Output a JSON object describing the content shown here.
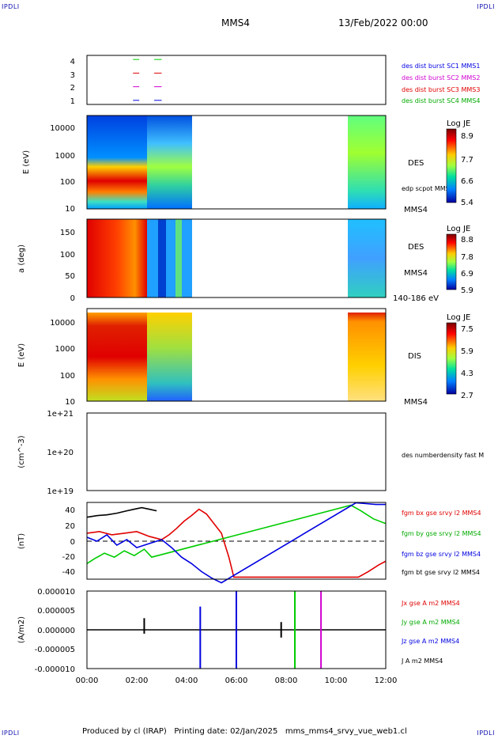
{
  "header": {
    "corner_tl": "IPDLI",
    "corner_tr": "IPDLI",
    "corner_bl": "IPDLI",
    "corner_br": "IPDLI",
    "spacecraft": "MMS4",
    "date": "13/Feb/2022 00:00"
  },
  "footer": {
    "text": "Produced by cl (IRAP)   Printing date: 02/Jan/2025   mms_mms4_srvy_vue_web1.cl"
  },
  "colors": {
    "red": "#e00000",
    "green": "#00cc00",
    "blue": "#0000e0",
    "magenta": "#d000d0",
    "black": "#000000"
  },
  "chart_data": [
    {
      "type": "line",
      "id": "burst",
      "yticks": [
        "1",
        "2",
        "3",
        "4"
      ],
      "ylim": [
        0.7,
        4.3
      ],
      "legend": [
        {
          "text": "des dist burst SC1 MMS1",
          "color": "#0000e0"
        },
        {
          "text": "des dist burst SC2 MMS2",
          "color": "#d000d0"
        },
        {
          "text": "des dist burst SC3 MMS3",
          "color": "#e00000"
        },
        {
          "text": "des dist burst SC4 MMS4",
          "color": "#00cc00"
        }
      ],
      "series": [
        {
          "level": 4,
          "color": "#00cc00",
          "x": [
            [
              1.85,
              2.1
            ],
            [
              2.7,
              3.0
            ]
          ]
        },
        {
          "level": 3,
          "color": "#e00000",
          "x": [
            [
              1.85,
              2.1
            ],
            [
              2.7,
              3.0
            ]
          ]
        },
        {
          "level": 2,
          "color": "#d000d0",
          "x": [
            [
              1.85,
              2.1
            ],
            [
              2.7,
              3.0
            ]
          ]
        },
        {
          "level": 1,
          "color": "#0000e0",
          "x": [
            [
              1.85,
              2.1
            ],
            [
              2.7,
              3.0
            ]
          ]
        }
      ]
    },
    {
      "type": "heatmap",
      "id": "des_energy",
      "ylabel": "E (eV)",
      "yscale": "log",
      "ylim": [
        10,
        30000
      ],
      "yticks": [
        "10",
        "100",
        "1000",
        "10000"
      ],
      "colorbar": {
        "title": "Log JE",
        "ticks": [
          "8.9",
          "7.7",
          "6.6",
          "5.4"
        ]
      },
      "labels": {
        "instrument": "DES",
        "overlay": "edp scpot MMS4",
        "sc": "MMS4"
      },
      "coverage_hours": [
        [
          0,
          4.2
        ],
        [
          10.5,
          12
        ]
      ]
    },
    {
      "type": "heatmap",
      "id": "des_pitch",
      "ylabel": "a (deg)",
      "ylim": [
        0,
        180
      ],
      "yticks": [
        "0",
        "50",
        "100",
        "150"
      ],
      "colorbar": {
        "title": "Log JE",
        "ticks": [
          "8.8",
          "7.8",
          "6.9",
          "5.9"
        ]
      },
      "labels": {
        "instrument": "DES",
        "sc": "MMS4",
        "range": "140-186 eV"
      },
      "coverage_hours": [
        [
          0,
          4.2
        ],
        [
          10.5,
          12
        ]
      ]
    },
    {
      "type": "heatmap",
      "id": "dis_energy",
      "ylabel": "E (eV)",
      "yscale": "log",
      "ylim": [
        10,
        20000
      ],
      "yticks": [
        "10",
        "100",
        "1000",
        "10000"
      ],
      "colorbar": {
        "title": "Log JE",
        "ticks": [
          "7.5",
          "5.9",
          "4.3",
          "2.7"
        ]
      },
      "labels": {
        "instrument": "DIS",
        "sc": "MMS4"
      },
      "coverage_hours": [
        [
          0,
          4.2
        ],
        [
          10.5,
          12
        ]
      ]
    },
    {
      "type": "line",
      "id": "density",
      "ylabel": "(cm^-3)",
      "yscale": "log",
      "yticks": [
        "1e+19",
        "1e+20",
        "1e+21"
      ],
      "legend": [
        {
          "text": "des numberdensity fast M",
          "color": "#000000"
        }
      ]
    },
    {
      "type": "line",
      "id": "bfield",
      "ylabel": "(nT)",
      "ylim": [
        -48,
        48
      ],
      "yticks": [
        "-40",
        "-20",
        "0",
        "20",
        "40"
      ],
      "legend": [
        {
          "text": "fgm bx gse srvy l2 MMS4",
          "color": "#e00000"
        },
        {
          "text": "fgm by gse srvy l2 MMS4",
          "color": "#00cc00"
        },
        {
          "text": "fgm bz gse srvy l2 MMS4",
          "color": "#0000e0"
        },
        {
          "text": "fgm bt gse srvy l2 MMS4",
          "color": "#000000"
        }
      ],
      "series": [
        {
          "name": "fgm bt gse srvy l2 MMS4",
          "color": "#000000",
          "x": [
            0.0,
            0.4,
            0.8,
            1.2,
            1.6,
            1.9,
            2.2,
            2.5,
            2.8
          ],
          "y": [
            30,
            32,
            33,
            35,
            38,
            40,
            42,
            40,
            38
          ]
        },
        {
          "name": "fgm bx gse srvy l2 MMS4",
          "color": "#e00000",
          "x": [
            0.0,
            0.5,
            1.0,
            1.5,
            2.0,
            2.5,
            3.0,
            3.3,
            3.6,
            3.9,
            4.2,
            4.5,
            4.8,
            5.1,
            5.4,
            5.7,
            5.9,
            10.9,
            11.3,
            11.7,
            12.0
          ],
          "y": [
            10,
            12,
            8,
            10,
            12,
            6,
            2,
            8,
            16,
            25,
            32,
            40,
            34,
            22,
            10,
            -20,
            -45,
            -45,
            -38,
            -30,
            -25
          ]
        },
        {
          "name": "fgm by gse srvy l2 MMS4",
          "color": "#00cc00",
          "x": [
            0.0,
            0.3,
            0.7,
            1.1,
            1.5,
            1.9,
            2.3,
            2.6,
            10.6,
            11.0,
            11.5,
            12.0
          ],
          "y": [
            -28,
            -22,
            -15,
            -20,
            -12,
            -18,
            -10,
            -20,
            45,
            38,
            28,
            22
          ]
        },
        {
          "name": "fgm bz gse srvy l2 MMS4",
          "color": "#0000e0",
          "x": [
            0.0,
            0.4,
            0.8,
            1.2,
            1.6,
            2.0,
            2.5,
            3.0,
            3.4,
            3.8,
            4.2,
            4.6,
            5.0,
            5.4,
            10.8,
            11.2,
            11.6,
            12.0
          ],
          "y": [
            5,
            0,
            8,
            -5,
            2,
            -8,
            -3,
            2,
            -8,
            -20,
            -28,
            -38,
            -46,
            -52,
            48,
            47,
            46,
            46
          ]
        }
      ]
    },
    {
      "type": "line",
      "id": "current",
      "ylabel": "(A/m2)",
      "ylim": [
        -0.0001,
        0.0001
      ],
      "yticks": [
        "-0.000010",
        "-0.000005",
        "0.000000",
        "0.000005",
        "0.000010"
      ],
      "legend": [
        {
          "text": "Jx gse A m2 MMS4",
          "color": "#e00000"
        },
        {
          "text": "Jy gse A m2 MMS4",
          "color": "#00cc00"
        },
        {
          "text": "Jz gse A m2 MMS4",
          "color": "#0000e0"
        },
        {
          "text": "J A m2 MMS4",
          "color": "#000000"
        }
      ],
      "spikes": [
        {
          "x": 2.3,
          "up": 3e-05,
          "down": -1e-05,
          "color": "#000000"
        },
        {
          "x": 4.55,
          "up": 6e-05,
          "down": -0.0001,
          "color": "#0000e0"
        },
        {
          "x": 6.0,
          "up": 0.0001,
          "down": -0.0001,
          "color": "#0000e0"
        },
        {
          "x": 7.8,
          "up": 2e-05,
          "down": -2e-05,
          "color": "#000000"
        },
        {
          "x": 8.35,
          "up": 0.0001,
          "down": -0.0001,
          "color": "#00cc00"
        },
        {
          "x": 9.4,
          "up": 0.0001,
          "down": -0.0001,
          "color": "#d000d0"
        }
      ]
    }
  ],
  "xaxis": {
    "ticks": [
      "00:00",
      "02:00",
      "04:00",
      "06:00",
      "08:00",
      "10:00",
      "12:00"
    ],
    "range_hours": [
      0,
      12
    ]
  }
}
